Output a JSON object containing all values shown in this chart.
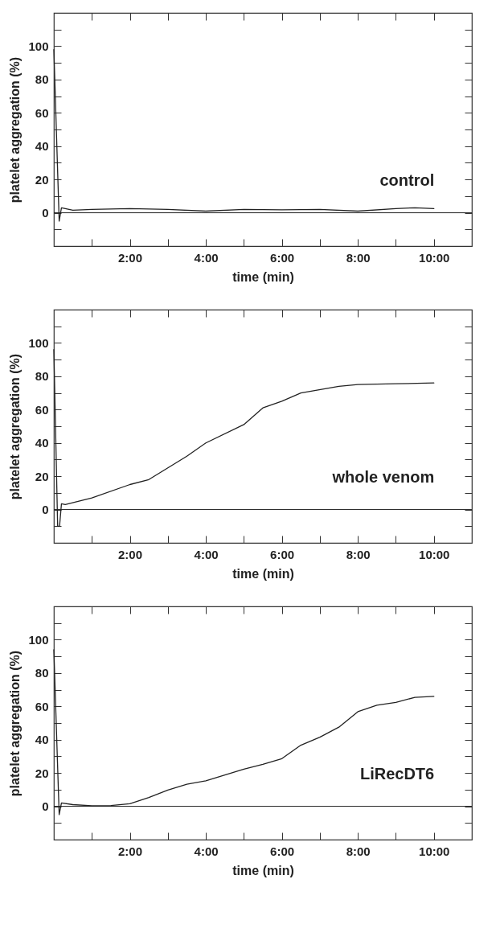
{
  "chart_data": [
    {
      "type": "line",
      "xlabel": "time (min)",
      "ylabel": "platelet aggregation (%)",
      "xlim": [
        0,
        11
      ],
      "ylim": [
        -20,
        120
      ],
      "xticks": [
        {
          "value": 1,
          "label": null
        },
        {
          "value": 2,
          "label": "2:00"
        },
        {
          "value": 3,
          "label": null
        },
        {
          "value": 4,
          "label": "4:00"
        },
        {
          "value": 5,
          "label": null
        },
        {
          "value": 6,
          "label": "6:00"
        },
        {
          "value": 7,
          "label": null
        },
        {
          "value": 8,
          "label": "8:00"
        },
        {
          "value": 9,
          "label": null
        },
        {
          "value": 10,
          "label": "10:00"
        }
      ],
      "yticks": [
        {
          "value": -10,
          "label": null
        },
        0,
        {
          "value": 10,
          "label": null
        },
        20,
        {
          "value": 30,
          "label": null
        },
        40,
        {
          "value": 50,
          "label": null
        },
        60,
        {
          "value": 70,
          "label": null
        },
        80,
        {
          "value": 90,
          "label": null
        },
        100,
        {
          "value": 110,
          "label": null
        }
      ],
      "ref_lines": [
        {
          "axis": "y",
          "value": 0
        }
      ],
      "series": [
        {
          "name": "control",
          "color": "#222222",
          "x": [
            0,
            0.14,
            0.2,
            0.5,
            1,
            2,
            3,
            4,
            5,
            6,
            7,
            8,
            9,
            9.5,
            10
          ],
          "values": [
            98,
            -5,
            3,
            1.5,
            2,
            2.5,
            2,
            1,
            2,
            1.8,
            2,
            1,
            2.5,
            3,
            2.5
          ]
        }
      ]
    },
    {
      "type": "line",
      "xlabel": "time (min)",
      "ylabel": "platelet aggregation (%)",
      "xlim": [
        0,
        11
      ],
      "ylim": [
        -20,
        120
      ],
      "xticks": [
        {
          "value": 1,
          "label": null
        },
        {
          "value": 2,
          "label": "2:00"
        },
        {
          "value": 3,
          "label": null
        },
        {
          "value": 4,
          "label": "4:00"
        },
        {
          "value": 5,
          "label": null
        },
        {
          "value": 6,
          "label": "6:00"
        },
        {
          "value": 7,
          "label": null
        },
        {
          "value": 8,
          "label": "8:00"
        },
        {
          "value": 9,
          "label": null
        },
        {
          "value": 10,
          "label": "10:00"
        }
      ],
      "yticks": [
        {
          "value": -10,
          "label": null
        },
        0,
        {
          "value": 10,
          "label": null
        },
        20,
        {
          "value": 30,
          "label": null
        },
        40,
        {
          "value": 50,
          "label": null
        },
        60,
        {
          "value": 70,
          "label": null
        },
        80,
        {
          "value": 90,
          "label": null
        },
        100,
        {
          "value": 110,
          "label": null
        }
      ],
      "ref_lines": [
        {
          "axis": "y",
          "value": 0
        }
      ],
      "series": [
        {
          "name": "whole venom",
          "color": "#222222",
          "x": [
            0,
            0.1,
            0.15,
            0.2,
            0.3,
            1,
            2,
            2.5,
            3,
            3.5,
            4,
            5,
            5.5,
            6,
            6.5,
            7.5,
            8,
            9,
            10
          ],
          "values": [
            96,
            -10,
            -10,
            3.5,
            3,
            7,
            15,
            18,
            25,
            32,
            40,
            51,
            61,
            65,
            70,
            74,
            75,
            75.5,
            76
          ]
        }
      ]
    },
    {
      "type": "line",
      "xlabel": "time (min)",
      "ylabel": "platelet aggregation (%)",
      "xlim": [
        0,
        11
      ],
      "ylim": [
        -20,
        120
      ],
      "xticks": [
        {
          "value": 1,
          "label": null
        },
        {
          "value": 2,
          "label": "2:00"
        },
        {
          "value": 3,
          "label": null
        },
        {
          "value": 4,
          "label": "4:00"
        },
        {
          "value": 5,
          "label": null
        },
        {
          "value": 6,
          "label": "6:00"
        },
        {
          "value": 7,
          "label": null
        },
        {
          "value": 8,
          "label": "8:00"
        },
        {
          "value": 9,
          "label": null
        },
        {
          "value": 10,
          "label": "10:00"
        }
      ],
      "yticks": [
        {
          "value": -10,
          "label": null
        },
        0,
        {
          "value": 10,
          "label": null
        },
        20,
        {
          "value": 30,
          "label": null
        },
        40,
        {
          "value": 50,
          "label": null
        },
        60,
        {
          "value": 70,
          "label": null
        },
        80,
        {
          "value": 90,
          "label": null
        },
        100,
        {
          "value": 110,
          "label": null
        }
      ],
      "ref_lines": [
        {
          "axis": "y",
          "value": 0
        }
      ],
      "series": [
        {
          "name": "LiRecDT6",
          "color": "#222222",
          "x": [
            0,
            0.14,
            0.2,
            0.5,
            1,
            1.5,
            2,
            2.5,
            3,
            3.5,
            4,
            5,
            5.5,
            6,
            6.5,
            7,
            7.5,
            8,
            8.5,
            9,
            9.5,
            10
          ],
          "values": [
            94,
            -5,
            2,
            1,
            0.3,
            0.5,
            1.5,
            5.3,
            9.8,
            13.2,
            15.3,
            22.3,
            25.2,
            28.6,
            36.7,
            41.5,
            47.5,
            56.8,
            60.7,
            62.4,
            65.4,
            66
          ]
        }
      ]
    }
  ]
}
